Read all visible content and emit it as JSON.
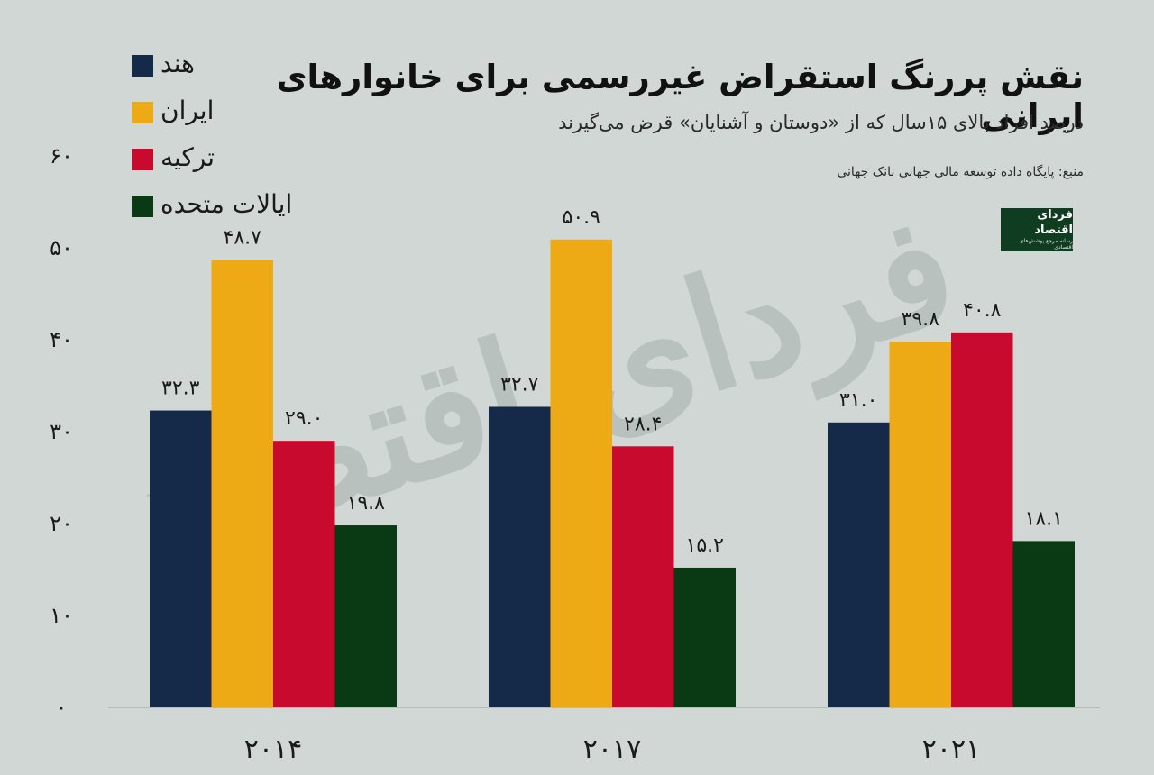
{
  "header": {
    "title": "نقش پررنگ استقراض غیررسمی برای خانوارهای ایرانی",
    "subtitle": "درصد افراد بالای ۱۵سال که از «دوستان و آشنایان» قرض می‌گیرند",
    "source": "منبع: پایگاه داده توسعه مالی جهانی بانک جهانی"
  },
  "logo": {
    "text": "فردای اقتصاد",
    "tagline": "رسانه مرجع پوشش‌های اقتصادی"
  },
  "watermark": "فردای اقتصاد",
  "chart_data": {
    "type": "bar",
    "categories": [
      "۲۰۱۴",
      "۲۰۱۷",
      "۲۰۲۱"
    ],
    "series": [
      {
        "name": "هند",
        "color": "#152a48",
        "values": [
          32.3,
          32.7,
          31.0
        ],
        "labels": [
          "۳۲.۳",
          "۳۲.۷",
          "۳۱.۰"
        ]
      },
      {
        "name": "ایران",
        "color": "#eeaa14",
        "values": [
          48.7,
          50.9,
          39.8
        ],
        "labels": [
          "۴۸.۷",
          "۵۰.۹",
          "۳۹.۸"
        ]
      },
      {
        "name": "ترکیه",
        "color": "#c70a2d",
        "values": [
          29.0,
          28.4,
          40.8
        ],
        "labels": [
          "۲۹.۰",
          "۲۸.۴",
          "۴۰.۸"
        ]
      },
      {
        "name": "ایالات متحده",
        "color": "#0a3a14",
        "values": [
          19.8,
          15.2,
          18.1
        ],
        "labels": [
          "۱۹.۸",
          "۱۵.۲",
          "۱۸.۱"
        ]
      }
    ],
    "yticks": [
      "۰",
      "۱۰",
      "۲۰",
      "۳۰",
      "۴۰",
      "۵۰",
      "۶۰"
    ],
    "ylim": [
      0,
      60
    ],
    "grid": false,
    "legend": "top-left"
  }
}
